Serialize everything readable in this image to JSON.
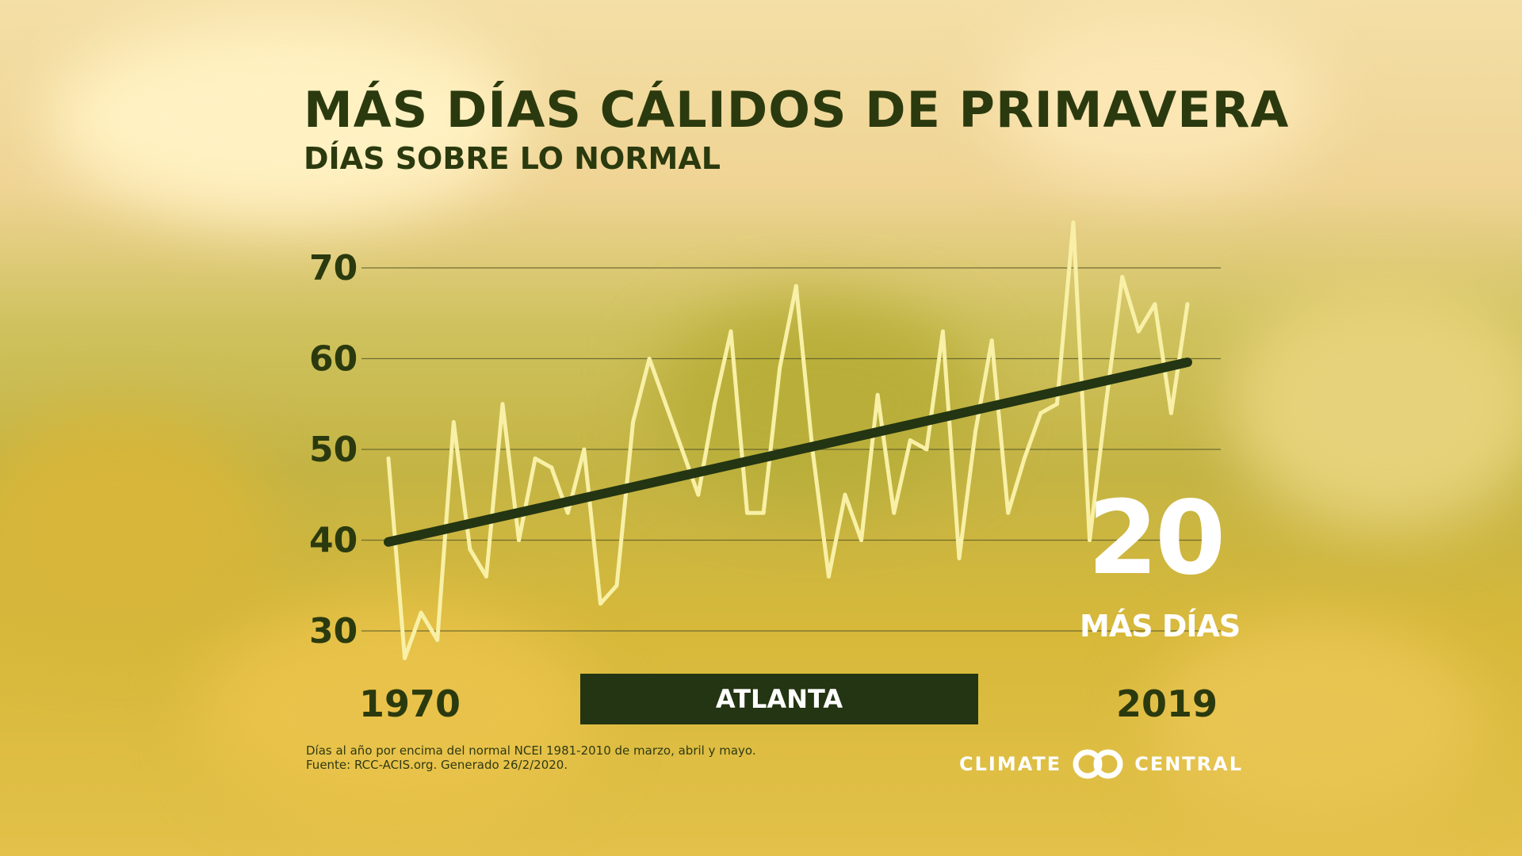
{
  "title": "MÁS DÍAS CÁLIDOS DE PRIMAVERA",
  "subtitle": "DÍAS SOBRE LO NORMAL",
  "callout": {
    "number": "20",
    "label": "MÁS DÍAS"
  },
  "location": "ATLANTA",
  "footnote": {
    "line1": "Días al año por encima del normal NCEI 1981-2010 de marzo, abril y mayo.",
    "line2": "Fuente: RCC-ACIS.org. Generado 26/2/2020."
  },
  "logo": {
    "left": "CLIMATE",
    "right": "CENTRAL",
    "icon": "climate-central-rings-icon"
  },
  "colors": {
    "line": "#f8f0a6",
    "trend": "#233512",
    "title": "#2b3a0e",
    "grid": "#5a5a28"
  },
  "chart_data": {
    "type": "line",
    "x_tick_labels": [
      "1970",
      "2019"
    ],
    "xlim": [
      1970,
      2019
    ],
    "ylim": [
      25,
      76
    ],
    "y_ticks": [
      30,
      40,
      50,
      60,
      70
    ],
    "grid": true,
    "series": [
      {
        "x": [
          1970,
          1971,
          1972,
          1973,
          1974,
          1975,
          1976,
          1977,
          1978,
          1979,
          1980,
          1981,
          1982,
          1983,
          1984,
          1985,
          1986,
          1987,
          1988,
          1989,
          1990,
          1991,
          1992,
          1993,
          1994,
          1995,
          1996,
          1997,
          1998,
          1999,
          2000,
          2001,
          2002,
          2003,
          2004,
          2005,
          2006,
          2007,
          2008,
          2009,
          2010,
          2011,
          2012,
          2013,
          2014,
          2015,
          2016,
          2017,
          2018,
          2019
        ],
        "values": [
          49,
          27,
          32,
          29,
          53,
          39,
          36,
          55,
          40,
          49,
          48,
          43,
          50,
          33,
          35,
          53,
          60,
          55,
          50,
          45,
          55,
          63,
          43,
          43,
          59,
          68,
          50,
          36,
          45,
          40,
          56,
          43,
          51,
          50,
          63,
          38,
          52,
          62,
          43,
          49,
          54,
          55,
          75,
          40,
          55,
          69,
          63,
          66,
          54,
          66
        ]
      }
    ],
    "trend": {
      "start": [
        1970,
        39.8
      ],
      "end": [
        2019,
        59.6
      ]
    }
  }
}
